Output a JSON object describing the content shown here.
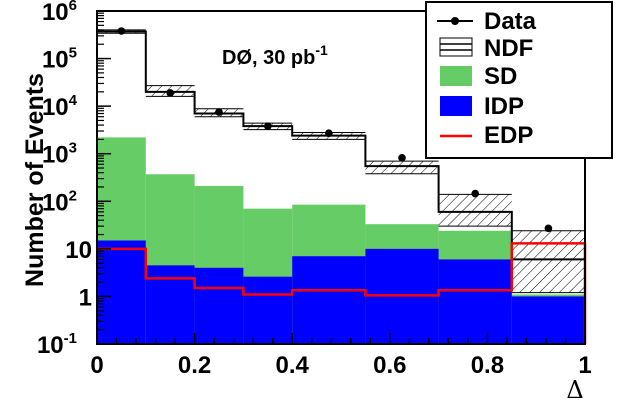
{
  "chart_data": {
    "type": "histogram",
    "xlabel": "Δ",
    "ylabel": "Number of Events",
    "xlim": [
      0,
      1
    ],
    "ylim": [
      0.1,
      1000000
    ],
    "y_scale": "log",
    "grid": false,
    "legend_position": "top-right",
    "annotation": {
      "main": "DØ, 30 pb",
      "sup": "-1"
    },
    "x_ticks": [
      "0",
      "0.2",
      "0.4",
      "0.6",
      "0.8",
      "1"
    ],
    "x_tick_values": [
      0,
      0.2,
      0.4,
      0.6,
      0.8,
      1
    ],
    "y_ticks": [
      {
        "base": "10",
        "sup": "-1",
        "value": 0.1
      },
      {
        "base": "1",
        "sup": "",
        "value": 1
      },
      {
        "base": "10",
        "sup": "",
        "value": 10
      },
      {
        "base": "10",
        "sup": "2",
        "value": 100
      },
      {
        "base": "10",
        "sup": "3",
        "value": 1000
      },
      {
        "base": "10",
        "sup": "4",
        "value": 10000
      },
      {
        "base": "10",
        "sup": "5",
        "value": 100000
      },
      {
        "base": "10",
        "sup": "6",
        "value": 1000000
      }
    ],
    "bin_edges": [
      0,
      0.1,
      0.2,
      0.3,
      0.4,
      0.55,
      0.7,
      0.85,
      1.0
    ],
    "series": [
      {
        "name": "Data",
        "kind": "points",
        "color": "#000000",
        "x": [
          0.05,
          0.15,
          0.25,
          0.35,
          0.475,
          0.625,
          0.775,
          0.925
        ],
        "values": [
          380000,
          19000,
          7500,
          3800,
          2700,
          820,
          145,
          27
        ]
      },
      {
        "name": "NDF",
        "kind": "hatched-band",
        "color": "#000000",
        "values": [
          370000,
          20000,
          7000,
          3800,
          2400,
          550,
          60,
          6
        ],
        "band_low": [
          340000,
          16000,
          6000,
          3200,
          2000,
          380,
          30,
          1.2
        ],
        "band_high": [
          400000,
          27000,
          8800,
          4400,
          2800,
          700,
          140,
          24
        ]
      },
      {
        "name": "SD",
        "kind": "filled",
        "color": "#66cc66",
        "values": [
          2200,
          370,
          210,
          70,
          85,
          33,
          24,
          1.1
        ]
      },
      {
        "name": "IDP",
        "kind": "filled",
        "color": "#0000ff",
        "values": [
          15,
          4.5,
          4.0,
          2.6,
          7.0,
          10.0,
          6.0,
          1.0
        ]
      },
      {
        "name": "EDP",
        "kind": "line",
        "color": "#ff0000",
        "values": [
          10,
          2.4,
          1.5,
          1.1,
          1.35,
          1.05,
          1.35,
          13
        ]
      }
    ]
  }
}
